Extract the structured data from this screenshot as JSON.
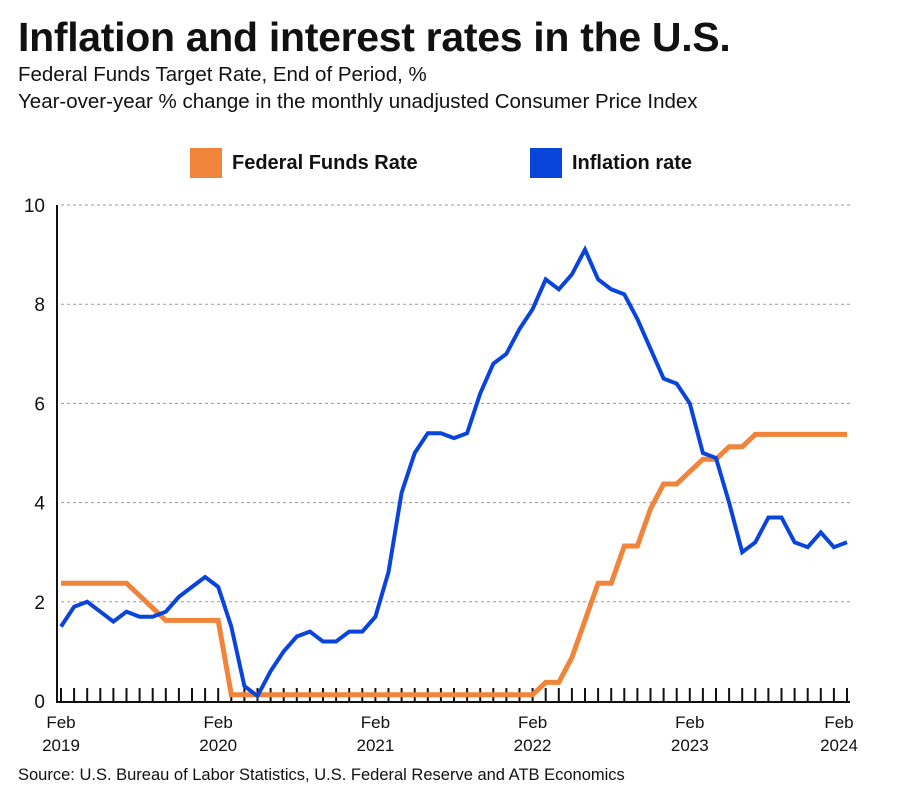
{
  "title": "Inflation and interest rates in the U.S.",
  "subtitle_lines": [
    "Federal Funds Target Rate, End of Period, %",
    "Year-over-year % change in the monthly unadjusted Consumer Price Index"
  ],
  "source": "Source: U.S. Bureau of Labor Statistics, U.S. Federal Reserve and ATB Economics",
  "colors": {
    "fed": "#F0843A",
    "inflation": "#0A45DB",
    "grid": "#9a9a9a"
  },
  "chart_data": {
    "type": "line",
    "x_start": "2019-02",
    "x_end": "2024-02",
    "x_frequency": "monthly",
    "xtick_labels": [
      [
        "Feb",
        "2019"
      ],
      [
        "Feb",
        "2020"
      ],
      [
        "Feb",
        "2021"
      ],
      [
        "Feb",
        "2022"
      ],
      [
        "Feb",
        "2023"
      ],
      [
        "Feb",
        "2024"
      ]
    ],
    "ylim": [
      0,
      10
    ],
    "yticks": [
      0,
      2,
      4,
      6,
      8,
      10
    ],
    "grid": "horizontal dashed",
    "legend": "top",
    "series": [
      {
        "name": "Federal Funds Rate",
        "color": "#F0843A",
        "values": [
          2.375,
          2.375,
          2.375,
          2.375,
          2.375,
          2.375,
          2.125,
          1.875,
          1.625,
          1.625,
          1.625,
          1.625,
          1.625,
          0.125,
          0.125,
          0.125,
          0.125,
          0.125,
          0.125,
          0.125,
          0.125,
          0.125,
          0.125,
          0.125,
          0.125,
          0.125,
          0.125,
          0.125,
          0.125,
          0.125,
          0.125,
          0.125,
          0.125,
          0.125,
          0.125,
          0.125,
          0.125,
          0.375,
          0.375,
          0.875,
          1.625,
          2.375,
          2.375,
          3.125,
          3.125,
          3.875,
          4.375,
          4.375,
          4.625,
          4.875,
          4.875,
          5.125,
          5.125,
          5.375,
          5.375,
          5.375,
          5.375,
          5.375,
          5.375,
          5.375,
          5.375
        ]
      },
      {
        "name": "Inflation rate",
        "color": "#0A45DB",
        "values": [
          1.5,
          1.9,
          2.0,
          1.8,
          1.6,
          1.8,
          1.7,
          1.7,
          1.8,
          2.1,
          2.3,
          2.5,
          2.3,
          1.5,
          0.3,
          0.1,
          0.6,
          1.0,
          1.3,
          1.4,
          1.2,
          1.2,
          1.4,
          1.4,
          1.7,
          2.6,
          4.2,
          5.0,
          5.4,
          5.4,
          5.3,
          5.4,
          6.2,
          6.8,
          7.0,
          7.5,
          7.9,
          8.5,
          8.3,
          8.6,
          9.1,
          8.5,
          8.3,
          8.2,
          7.7,
          7.1,
          6.5,
          6.4,
          6.0,
          5.0,
          4.9,
          4.0,
          3.0,
          3.2,
          3.7,
          3.7,
          3.2,
          3.1,
          3.4,
          3.1,
          3.2
        ]
      }
    ]
  }
}
